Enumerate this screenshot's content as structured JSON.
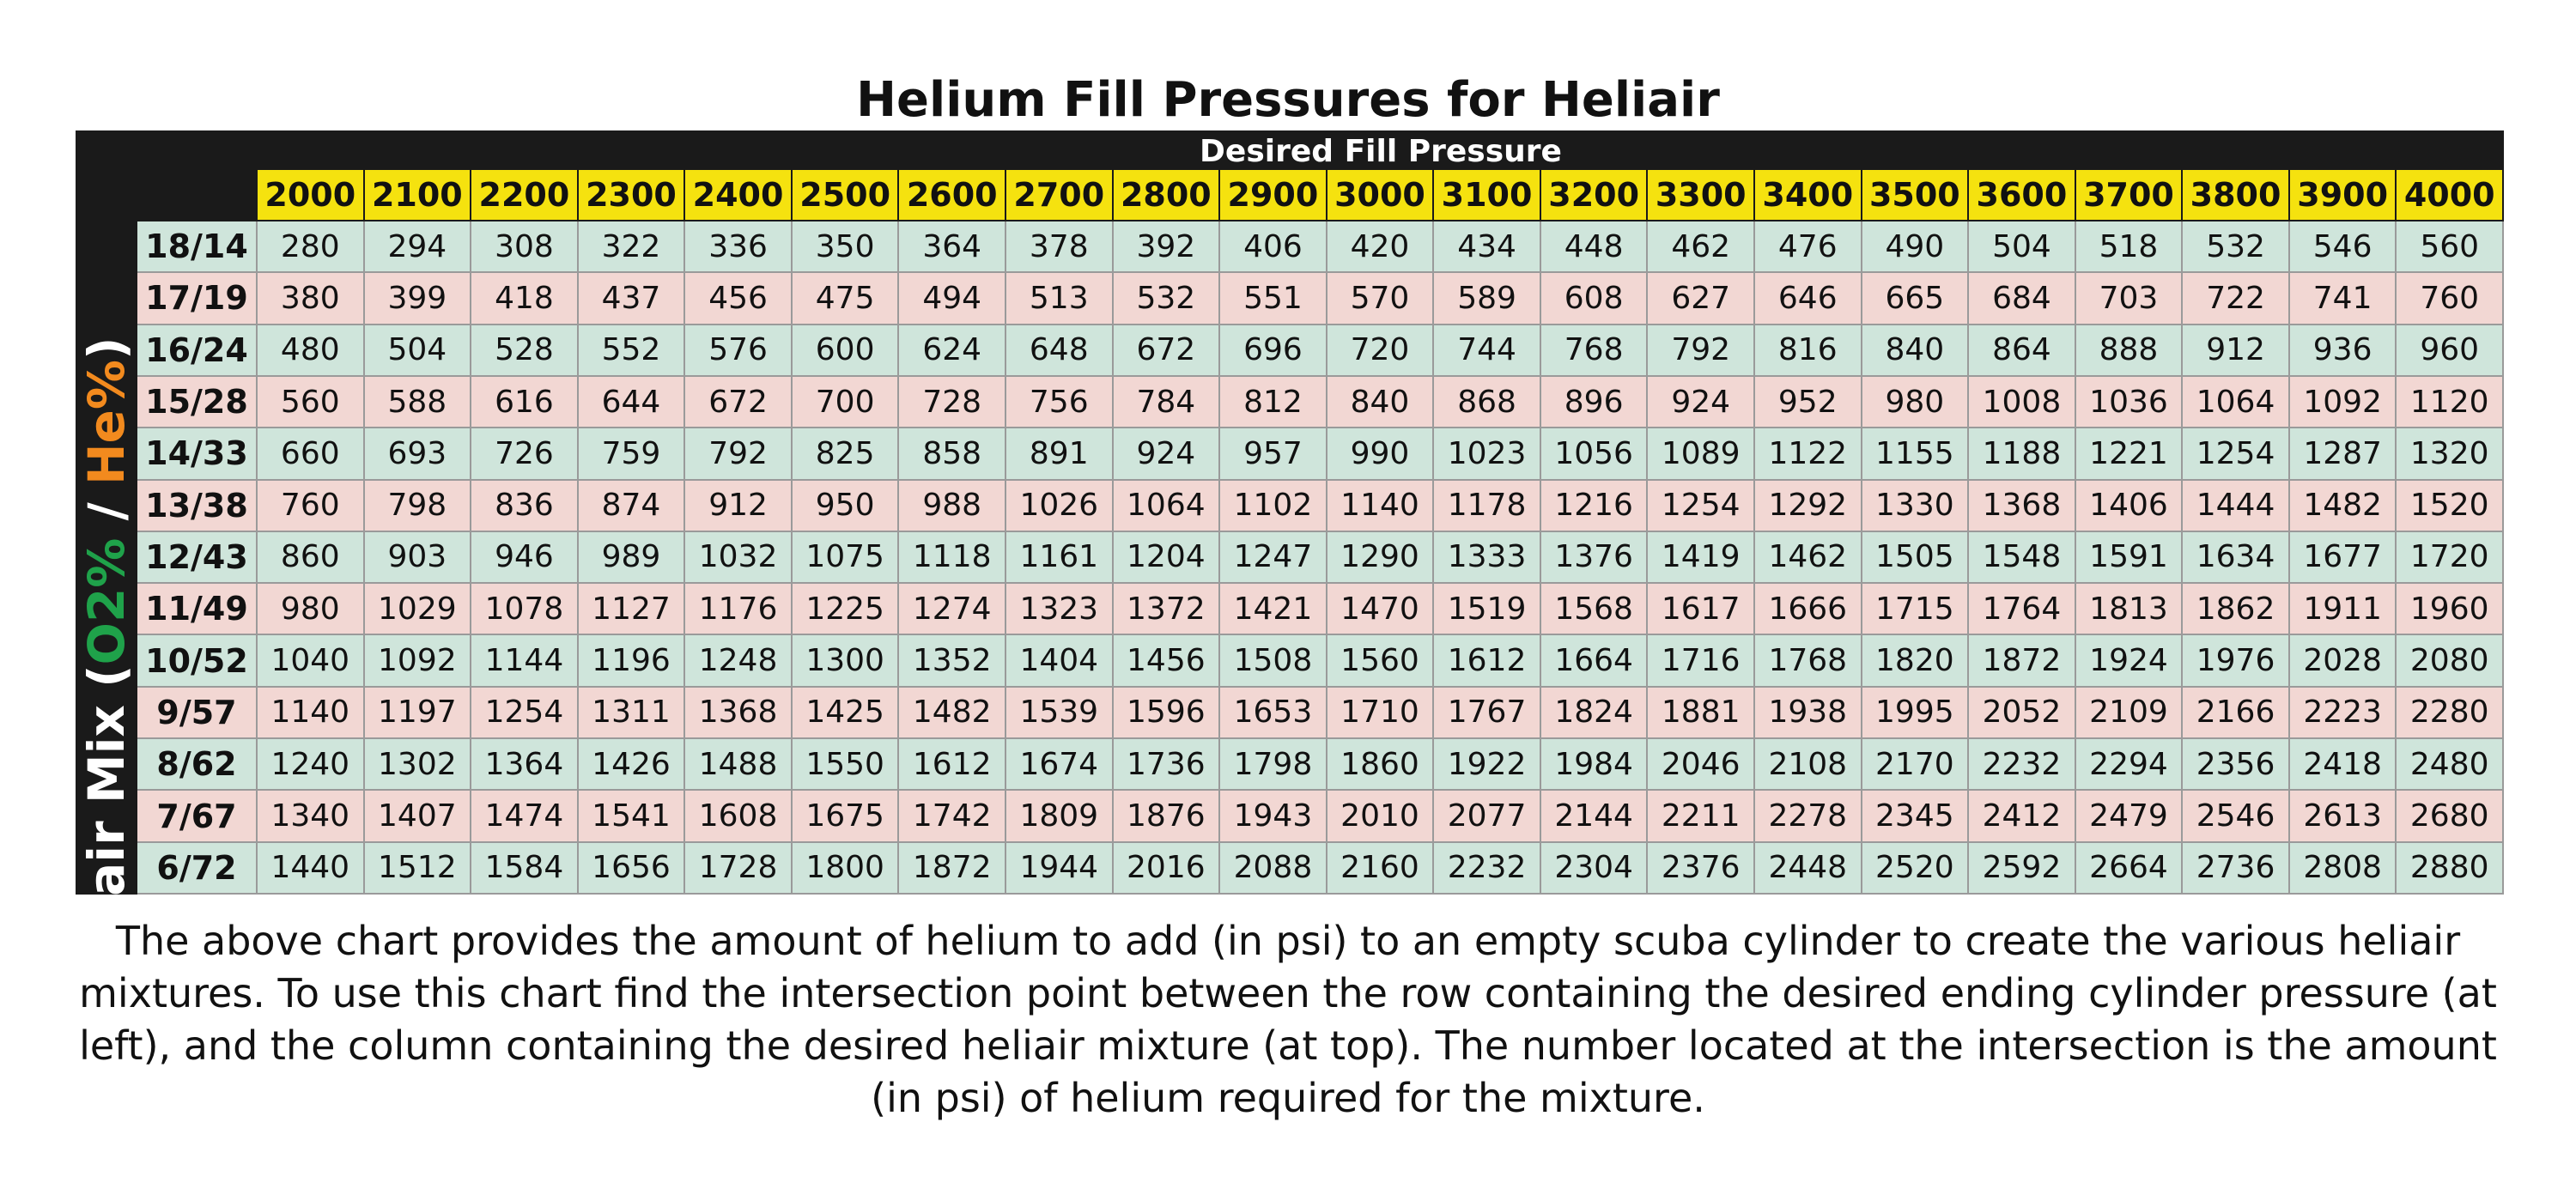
{
  "title": "Helium Fill Pressures for Heliair",
  "description": "The above chart provides the amount of helium to add (in psi) to an empty scuba cylinder to create the various heliair mixtures. To use this chart find the intersection point between the row containing the desired ending cylinder pressure (at left), and the column containing the desired heliair mixture (at top). The number located at the intersection is the amount (in psi) of helium required for the mixture.",
  "colors": {
    "header_yellow": "#f5e20f",
    "row_green": "#cfe5db",
    "row_pink": "#f2d7d3",
    "frame_black": "#1a1a1a",
    "o2_green": "#1fa24a",
    "he_orange": "#f28a1e"
  },
  "chart_data": {
    "type": "table",
    "title": "Helium Fill Pressures for Heliair",
    "column_header": "Desired Fill Pressure",
    "row_header": {
      "prefix": "Heliair Mix (",
      "o2": "O2%",
      "separator": " / ",
      "he": "He%",
      "suffix": ")"
    },
    "columns": [
      "2000",
      "2100",
      "2200",
      "2300",
      "2400",
      "2500",
      "2600",
      "2700",
      "2800",
      "2900",
      "3000",
      "3100",
      "3200",
      "3300",
      "3400",
      "3500",
      "3600",
      "3700",
      "3800",
      "3900",
      "4000"
    ],
    "rows": [
      {
        "label": "18/14",
        "values": [
          "280",
          "294",
          "308",
          "322",
          "336",
          "350",
          "364",
          "378",
          "392",
          "406",
          "420",
          "434",
          "448",
          "462",
          "476",
          "490",
          "504",
          "518",
          "532",
          "546",
          "560"
        ]
      },
      {
        "label": "17/19",
        "values": [
          "380",
          "399",
          "418",
          "437",
          "456",
          "475",
          "494",
          "513",
          "532",
          "551",
          "570",
          "589",
          "608",
          "627",
          "646",
          "665",
          "684",
          "703",
          "722",
          "741",
          "760"
        ]
      },
      {
        "label": "16/24",
        "values": [
          "480",
          "504",
          "528",
          "552",
          "576",
          "600",
          "624",
          "648",
          "672",
          "696",
          "720",
          "744",
          "768",
          "792",
          "816",
          "840",
          "864",
          "888",
          "912",
          "936",
          "960"
        ]
      },
      {
        "label": "15/28",
        "values": [
          "560",
          "588",
          "616",
          "644",
          "672",
          "700",
          "728",
          "756",
          "784",
          "812",
          "840",
          "868",
          "896",
          "924",
          "952",
          "980",
          "1008",
          "1036",
          "1064",
          "1092",
          "1120"
        ]
      },
      {
        "label": "14/33",
        "values": [
          "660",
          "693",
          "726",
          "759",
          "792",
          "825",
          "858",
          "891",
          "924",
          "957",
          "990",
          "1023",
          "1056",
          "1089",
          "1122",
          "1155",
          "1188",
          "1221",
          "1254",
          "1287",
          "1320"
        ]
      },
      {
        "label": "13/38",
        "values": [
          "760",
          "798",
          "836",
          "874",
          "912",
          "950",
          "988",
          "1026",
          "1064",
          "1102",
          "1140",
          "1178",
          "1216",
          "1254",
          "1292",
          "1330",
          "1368",
          "1406",
          "1444",
          "1482",
          "1520"
        ]
      },
      {
        "label": "12/43",
        "values": [
          "860",
          "903",
          "946",
          "989",
          "1032",
          "1075",
          "1118",
          "1161",
          "1204",
          "1247",
          "1290",
          "1333",
          "1376",
          "1419",
          "1462",
          "1505",
          "1548",
          "1591",
          "1634",
          "1677",
          "1720"
        ]
      },
      {
        "label": "11/49",
        "values": [
          "980",
          "1029",
          "1078",
          "1127",
          "1176",
          "1225",
          "1274",
          "1323",
          "1372",
          "1421",
          "1470",
          "1519",
          "1568",
          "1617",
          "1666",
          "1715",
          "1764",
          "1813",
          "1862",
          "1911",
          "1960"
        ]
      },
      {
        "label": "10/52",
        "values": [
          "1040",
          "1092",
          "1144",
          "1196",
          "1248",
          "1300",
          "1352",
          "1404",
          "1456",
          "1508",
          "1560",
          "1612",
          "1664",
          "1716",
          "1768",
          "1820",
          "1872",
          "1924",
          "1976",
          "2028",
          "2080"
        ]
      },
      {
        "label": "9/57",
        "values": [
          "1140",
          "1197",
          "1254",
          "1311",
          "1368",
          "1425",
          "1482",
          "1539",
          "1596",
          "1653",
          "1710",
          "1767",
          "1824",
          "1881",
          "1938",
          "1995",
          "2052",
          "2109",
          "2166",
          "2223",
          "2280"
        ]
      },
      {
        "label": "8/62",
        "values": [
          "1240",
          "1302",
          "1364",
          "1426",
          "1488",
          "1550",
          "1612",
          "1674",
          "1736",
          "1798",
          "1860",
          "1922",
          "1984",
          "2046",
          "2108",
          "2170",
          "2232",
          "2294",
          "2356",
          "2418",
          "2480"
        ]
      },
      {
        "label": "7/67",
        "values": [
          "1340",
          "1407",
          "1474",
          "1541",
          "1608",
          "1675",
          "1742",
          "1809",
          "1876",
          "1943",
          "2010",
          "2077",
          "2144",
          "2211",
          "2278",
          "2345",
          "2412",
          "2479",
          "2546",
          "2613",
          "2680"
        ]
      },
      {
        "label": "6/72",
        "values": [
          "1440",
          "1512",
          "1584",
          "1656",
          "1728",
          "1800",
          "1872",
          "1944",
          "2016",
          "2088",
          "2160",
          "2232",
          "2304",
          "2376",
          "2448",
          "2520",
          "2592",
          "2664",
          "2736",
          "2808",
          "2880"
        ]
      }
    ]
  }
}
